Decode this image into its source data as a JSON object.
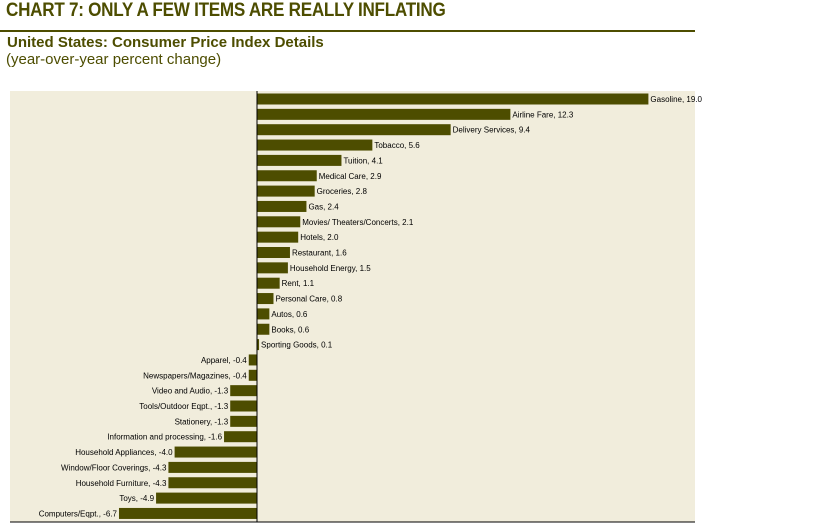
{
  "header": {
    "title": "CHART 7: ONLY A FEW ITEMS ARE REALLY INFLATING",
    "subtitle": "United States: Consumer Price Index Details",
    "unit": "(year-over-year percent change)"
  },
  "colors": {
    "bar": "#4d4d00",
    "plot_bg": "#f1eddc",
    "title": "#4d4d00"
  },
  "chart_data": {
    "type": "bar",
    "orientation": "horizontal",
    "title": "CHART 7: ONLY A FEW ITEMS ARE REALLY INFLATING",
    "subtitle": "United States: Consumer Price Index Details",
    "ylabel": "",
    "xlabel": "(year-over-year percent change)",
    "xlim": [
      -12,
      21
    ],
    "grid": false,
    "categories": [
      "Gasoline",
      "Airline Fare",
      "Delivery Services",
      "Tobacco",
      "Tuition",
      "Medical Care",
      "Groceries",
      "Gas",
      "Movies/ Theaters/Concerts",
      "Hotels",
      "Restaurant",
      "Household Energy",
      "Rent",
      "Personal Care",
      "Autos",
      "Books",
      "Sporting Goods",
      "Apparel",
      "Newspapers/Magazines",
      "Video and Audio",
      "Tools/Outdoor Eqpt.",
      "Stationery",
      "Information and processing",
      "Household Appliances",
      "Window/Floor Coverings",
      "Household Furniture",
      "Toys",
      "Computers/Eqpt."
    ],
    "values": [
      19.0,
      12.3,
      9.4,
      5.6,
      4.1,
      2.9,
      2.8,
      2.4,
      2.1,
      2.0,
      1.6,
      1.5,
      1.1,
      0.8,
      0.6,
      0.6,
      0.1,
      -0.4,
      -0.4,
      -1.3,
      -1.3,
      -1.3,
      -1.6,
      -4.0,
      -4.3,
      -4.3,
      -4.9,
      -6.7
    ]
  }
}
